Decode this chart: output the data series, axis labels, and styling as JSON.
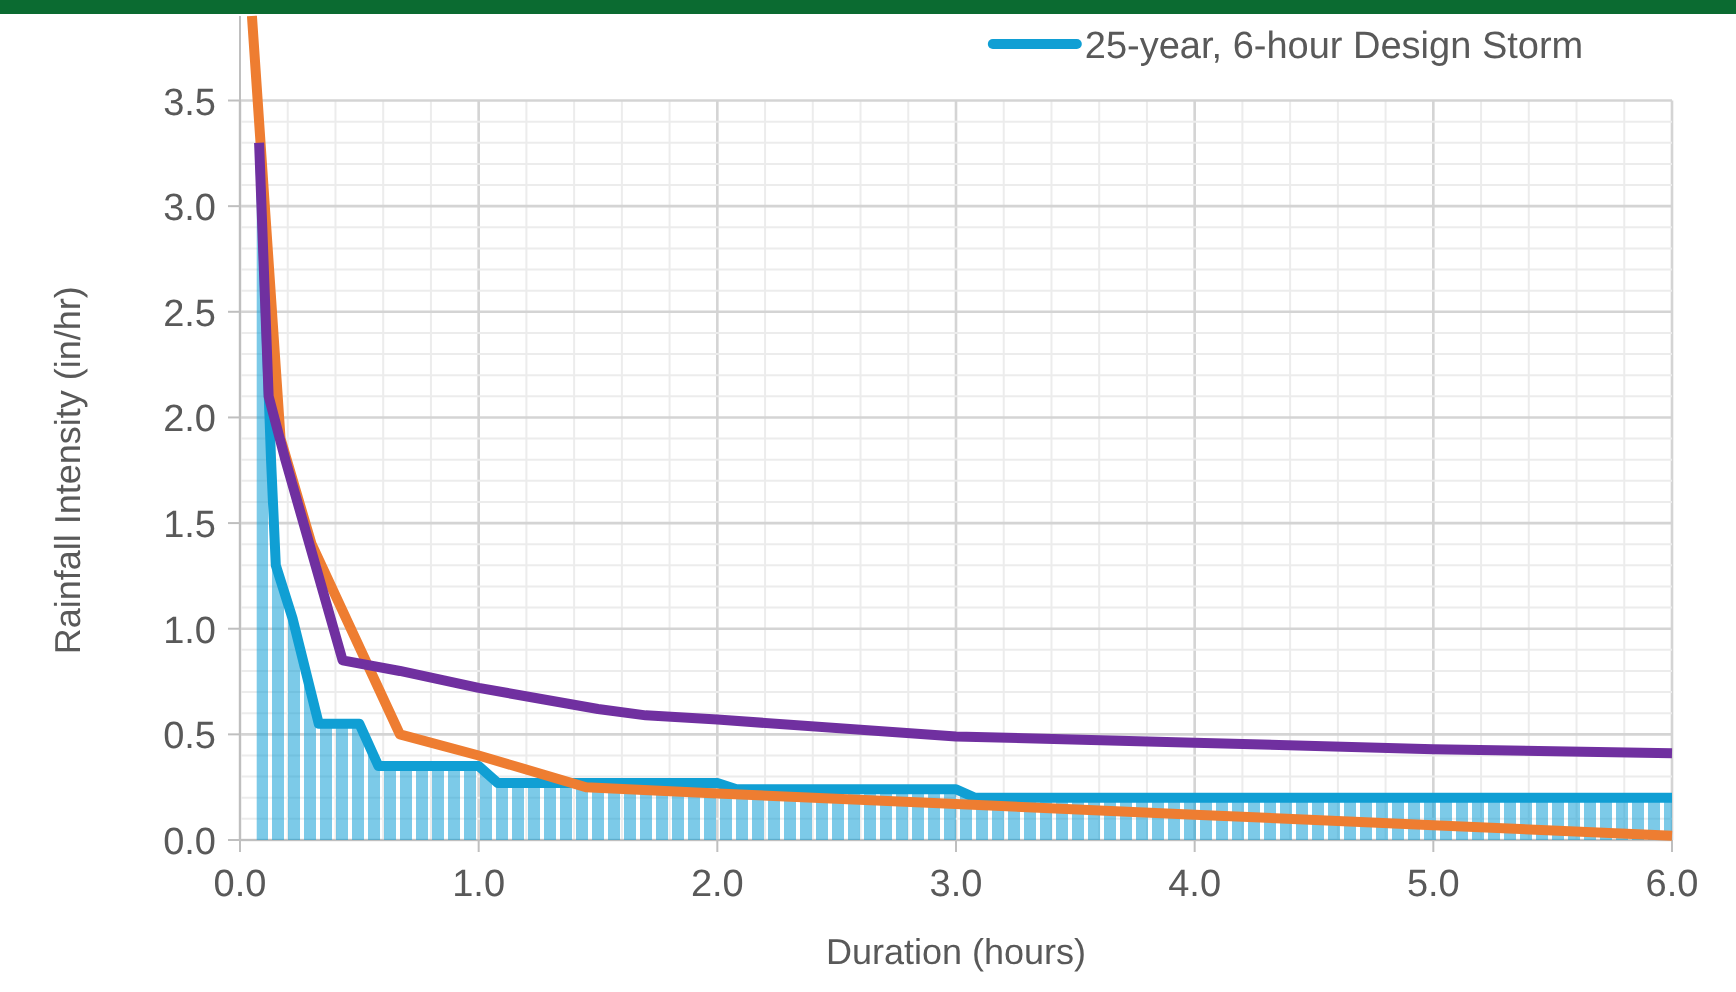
{
  "chart_data": {
    "type": "line",
    "xlabel": "Duration (hours)",
    "ylabel": "Rainfall Intensity (in/hr)",
    "xlim": [
      0,
      6
    ],
    "ylim": [
      0,
      3.9
    ],
    "xticks": [
      {
        "value": 0,
        "label": "0.0"
      },
      {
        "value": 0.2,
        "label": null
      },
      {
        "value": 0.4,
        "label": null
      },
      {
        "value": 0.6,
        "label": null
      },
      {
        "value": 0.8,
        "label": null
      },
      {
        "value": 1,
        "label": "1.0"
      },
      {
        "value": 1.2,
        "label": null
      },
      {
        "value": 1.4,
        "label": null
      },
      {
        "value": 1.6,
        "label": null
      },
      {
        "value": 1.8,
        "label": null
      },
      {
        "value": 2,
        "label": "2.0"
      },
      {
        "value": 2.2,
        "label": null
      },
      {
        "value": 2.4,
        "label": null
      },
      {
        "value": 2.6,
        "label": null
      },
      {
        "value": 2.8,
        "label": null
      },
      {
        "value": 3,
        "label": "3.0"
      },
      {
        "value": 3.2,
        "label": null
      },
      {
        "value": 3.4,
        "label": null
      },
      {
        "value": 3.6,
        "label": null
      },
      {
        "value": 3.8,
        "label": null
      },
      {
        "value": 4,
        "label": "4.0"
      },
      {
        "value": 4.2,
        "label": null
      },
      {
        "value": 4.4,
        "label": null
      },
      {
        "value": 4.6,
        "label": null
      },
      {
        "value": 4.8,
        "label": null
      },
      {
        "value": 5,
        "label": "5.0"
      },
      {
        "value": 5.2,
        "label": null
      },
      {
        "value": 5.4,
        "label": null
      },
      {
        "value": 5.6,
        "label": null
      },
      {
        "value": 5.8,
        "label": null
      },
      {
        "value": 6,
        "label": "6.0"
      }
    ],
    "yticks": [
      {
        "value": 0,
        "label": "0.0"
      },
      {
        "value": 0.1,
        "label": null
      },
      {
        "value": 0.2,
        "label": null
      },
      {
        "value": 0.3,
        "label": null
      },
      {
        "value": 0.4,
        "label": null
      },
      {
        "value": 0.5,
        "label": "0.5"
      },
      {
        "value": 0.6,
        "label": null
      },
      {
        "value": 0.7,
        "label": null
      },
      {
        "value": 0.8,
        "label": null
      },
      {
        "value": 0.9,
        "label": null
      },
      {
        "value": 1,
        "label": "1.0"
      },
      {
        "value": 1.1,
        "label": null
      },
      {
        "value": 1.2,
        "label": null
      },
      {
        "value": 1.3,
        "label": null
      },
      {
        "value": 1.4,
        "label": null
      },
      {
        "value": 1.5,
        "label": "1.5"
      },
      {
        "value": 1.6,
        "label": null
      },
      {
        "value": 1.7,
        "label": null
      },
      {
        "value": 1.8,
        "label": null
      },
      {
        "value": 1.9,
        "label": null
      },
      {
        "value": 2,
        "label": "2.0"
      },
      {
        "value": 2.1,
        "label": null
      },
      {
        "value": 2.2,
        "label": null
      },
      {
        "value": 2.3,
        "label": null
      },
      {
        "value": 2.4,
        "label": null
      },
      {
        "value": 2.5,
        "label": "2.5"
      },
      {
        "value": 2.6,
        "label": null
      },
      {
        "value": 2.7,
        "label": null
      },
      {
        "value": 2.8,
        "label": null
      },
      {
        "value": 2.9,
        "label": null
      },
      {
        "value": 3,
        "label": "3.0"
      },
      {
        "value": 3.1,
        "label": null
      },
      {
        "value": 3.2,
        "label": null
      },
      {
        "value": 3.3,
        "label": null
      },
      {
        "value": 3.4,
        "label": null
      },
      {
        "value": 3.5,
        "label": "3.5"
      }
    ],
    "grid": true,
    "legend": "top right",
    "line_style": "solid",
    "series": [
      {
        "type": "area",
        "name": "25-year, 6-hour Design Storm",
        "color": "#109fd4",
        "x": [
          0.07,
          0.083,
          0.13,
          0.15,
          0.22,
          0.33,
          0.5,
          0.58,
          1.0,
          1.08,
          2.0,
          2.08,
          3.0,
          3.08,
          6.0
        ],
        "values": [
          3.3,
          3.3,
          1.8,
          1.3,
          1.05,
          0.55,
          0.55,
          0.35,
          0.35,
          0.27,
          0.27,
          0.24,
          0.24,
          0.2,
          0.2
        ]
      },
      {
        "color": "#ee7d31",
        "x": [
          0.05,
          0.17,
          0.3,
          0.67,
          1.0,
          1.45,
          2.0,
          3.0,
          4.0,
          5.0,
          6.0
        ],
        "values": [
          3.9,
          1.9,
          1.4,
          0.5,
          0.4,
          0.25,
          0.22,
          0.17,
          0.12,
          0.07,
          0.02
        ]
      },
      {
        "color": "#7030a0",
        "x": [
          0.08,
          0.12,
          0.19,
          0.43,
          0.67,
          1.0,
          1.5,
          1.7,
          2.0,
          3.0,
          4.0,
          5.0,
          6.0
        ],
        "values": [
          3.3,
          2.1,
          1.8,
          0.85,
          0.8,
          0.72,
          0.62,
          0.59,
          0.57,
          0.49,
          0.46,
          0.43,
          0.41
        ]
      }
    ]
  }
}
